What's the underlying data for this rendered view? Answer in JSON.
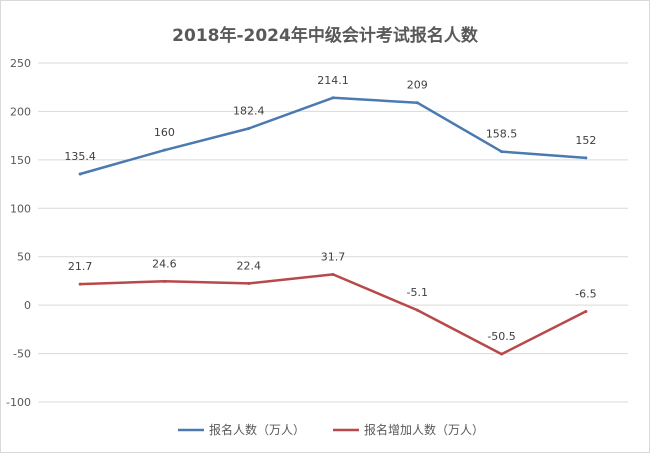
{
  "chart_data": {
    "type": "line",
    "title": "2018年-2024年中级会计考试报名人数",
    "xlabel": "",
    "ylabel": "",
    "ylim": [
      -100,
      250
    ],
    "yticks": [
      250,
      200,
      150,
      100,
      50,
      0,
      -50,
      -100
    ],
    "grid": true,
    "legend_position": "bottom",
    "points_per_series": 7,
    "series": [
      {
        "name": "报名人数（万人）",
        "color": "#4a7ab0",
        "values": [
          135.4,
          160,
          182.4,
          214.1,
          209,
          158.5,
          152
        ],
        "labels": [
          "135.4",
          "160",
          "182.4",
          "214.1",
          "209",
          "158.5",
          "152"
        ]
      },
      {
        "name": "报名增加人数（万人）",
        "color": "#b8494a",
        "values": [
          21.7,
          24.6,
          22.4,
          31.7,
          -5.1,
          -50.5,
          -6.5
        ],
        "labels": [
          "21.7",
          "24.6",
          "22.4",
          "31.7",
          "-5.1",
          "-50.5",
          "-6.5"
        ]
      }
    ]
  }
}
